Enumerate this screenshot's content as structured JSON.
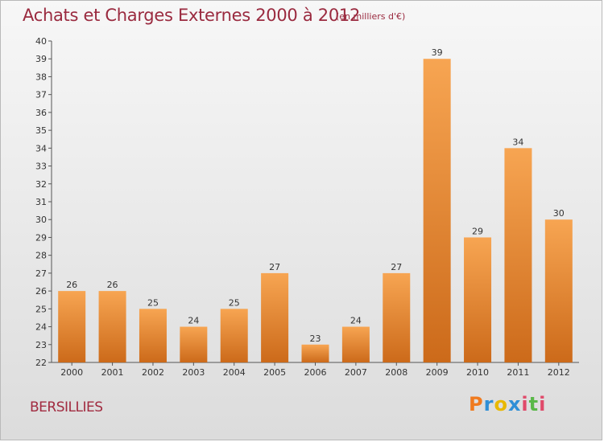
{
  "chart_data": {
    "type": "bar",
    "title": "Achats et Charges Externes 2000 à 2012",
    "subtitle": "(en milliers d'€)",
    "categories": [
      "2000",
      "2001",
      "2002",
      "2003",
      "2004",
      "2005",
      "2006",
      "2007",
      "2008",
      "2009",
      "2010",
      "2011",
      "2012"
    ],
    "values": [
      26,
      26,
      25,
      24,
      25,
      27,
      23,
      24,
      27,
      39,
      29,
      34,
      30
    ],
    "ylim": [
      22,
      40
    ],
    "yticks": [
      22,
      23,
      24,
      25,
      26,
      27,
      28,
      29,
      30,
      31,
      32,
      33,
      34,
      35,
      36,
      37,
      38,
      39,
      40
    ],
    "grid": false,
    "bar_color_top": "#f7a552",
    "bar_color_bottom": "#cc6a1a"
  },
  "footer": {
    "commune": "BERSILLIES",
    "logo_text": "Proxiti",
    "logo_colors": [
      "#f07a1e",
      "#2f8fd6",
      "#e8b800",
      "#2f8fd6",
      "#e04a6a",
      "#59b848",
      "#e04a6a"
    ]
  }
}
